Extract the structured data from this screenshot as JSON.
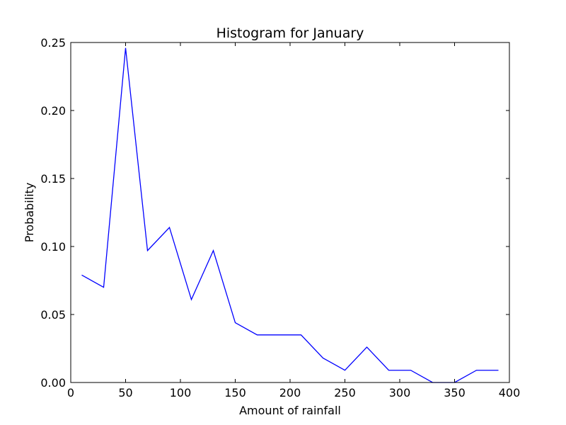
{
  "chart_data": {
    "type": "line",
    "title": "Histogram for January",
    "xlabel": "Amount of rainfall",
    "ylabel": "Probability",
    "xlim": [
      0,
      400
    ],
    "ylim": [
      0,
      0.25
    ],
    "x_ticks": [
      0,
      50,
      100,
      150,
      200,
      250,
      300,
      350,
      400
    ],
    "x_tick_labels": [
      "0",
      "50",
      "100",
      "150",
      "200",
      "250",
      "300",
      "350",
      "400"
    ],
    "y_ticks": [
      0,
      0.05,
      0.1,
      0.15,
      0.2,
      0.25
    ],
    "y_tick_labels": [
      "0.00",
      "0.05",
      "0.10",
      "0.15",
      "0.20",
      "0.25"
    ],
    "grid": false,
    "series": [
      {
        "color": "#0000ff",
        "x": [
          10,
          30,
          50,
          70,
          90,
          110,
          130,
          150,
          170,
          190,
          210,
          230,
          250,
          270,
          290,
          310,
          330,
          350,
          370,
          390
        ],
        "y": [
          0.079,
          0.07,
          0.246,
          0.097,
          0.114,
          0.061,
          0.097,
          0.044,
          0.035,
          0.035,
          0.035,
          0.018,
          0.009,
          0.026,
          0.009,
          0.009,
          0.0,
          0.0,
          0.009,
          0.009
        ]
      }
    ]
  }
}
